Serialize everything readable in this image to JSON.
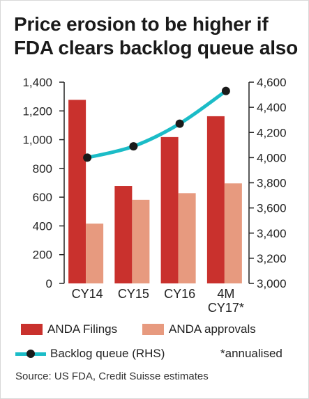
{
  "title_lines": [
    "Price erosion to be higher if",
    "FDA clears backlog queue also"
  ],
  "colors": {
    "filings": "#c9312d",
    "approvals": "#e79a7f",
    "backlog": "#1bbcc7",
    "marker": "#1a1a1a",
    "axis": "#222222"
  },
  "legend": {
    "filings": "ANDA Filings",
    "approvals": "ANDA approvals",
    "backlog": "Backlog queue (RHS)",
    "note": "*annualised"
  },
  "source": "Source: US FDA, Credit Suisse estimates",
  "chart_data": {
    "type": "bar",
    "categories": [
      [
        "CY14"
      ],
      [
        "CY15"
      ],
      [
        "CY16"
      ],
      [
        "4M",
        "CY17*"
      ]
    ],
    "series": [
      {
        "name": "ANDA Filings",
        "type": "bar",
        "axis": "left",
        "values": [
          1277,
          678,
          1018,
          1163
        ]
      },
      {
        "name": "ANDA approvals",
        "type": "bar",
        "axis": "left",
        "values": [
          416,
          582,
          628,
          696
        ]
      },
      {
        "name": "Backlog queue (RHS)",
        "type": "line",
        "axis": "right",
        "values": [
          4000,
          4090,
          4270,
          4530
        ]
      }
    ],
    "y_left": {
      "range": [
        0,
        1400
      ],
      "ticks": [
        "0",
        "200",
        "400",
        "600",
        "800",
        "1,000",
        "1,200",
        "1,400"
      ]
    },
    "y_right": {
      "range": [
        3000,
        4600
      ],
      "ticks": [
        "3,000",
        "3,200",
        "3,400",
        "3,600",
        "3,800",
        "4,000",
        "4,200",
        "4,400",
        "4,600"
      ]
    },
    "grid": false,
    "legend_position": "bottom"
  }
}
